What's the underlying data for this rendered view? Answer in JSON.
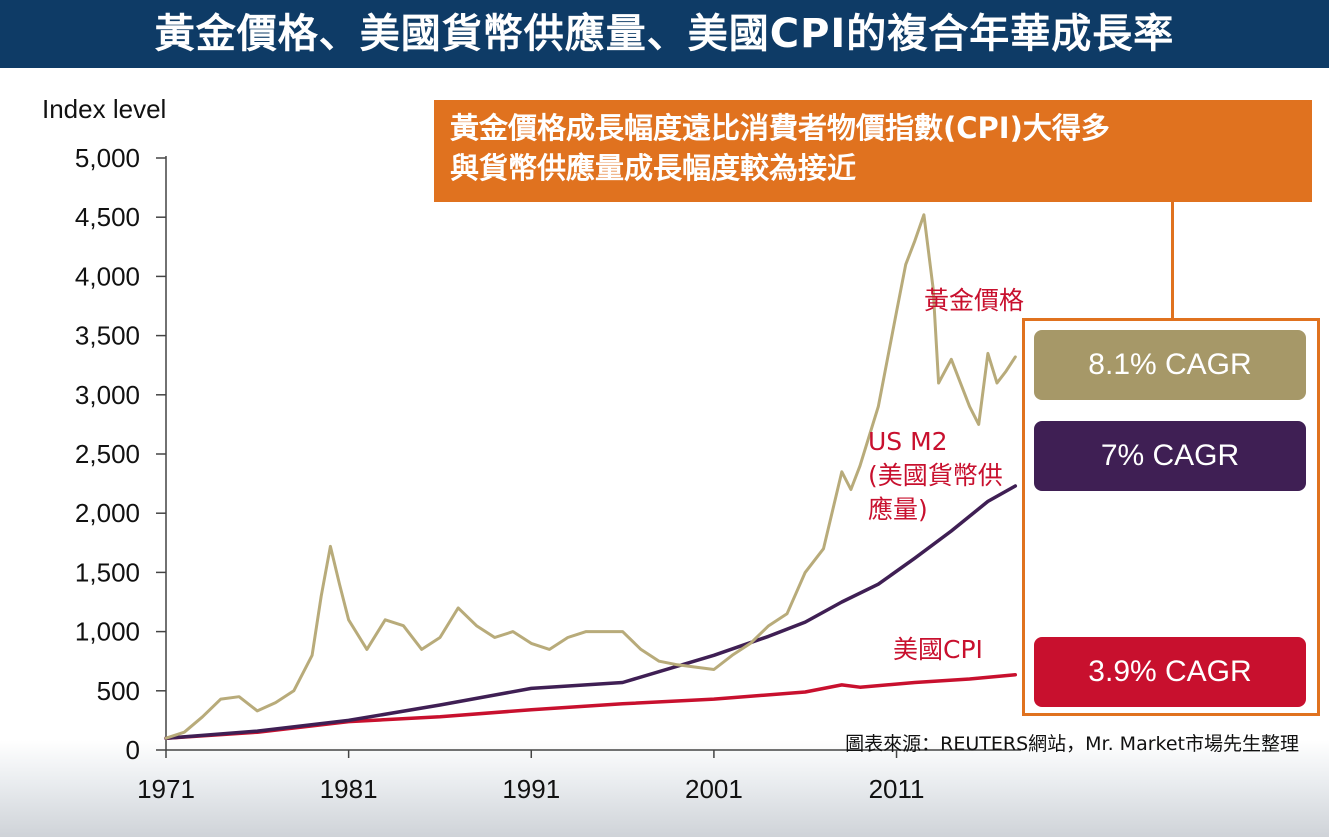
{
  "title": "黃金價格、美國貨幣供應量、美國CPI的複合年華成長率",
  "callout": {
    "line1": "黃金價格成長幅度遠比消費者物價指數(CPI)大得多",
    "line2": "與貨幣供應量成長幅度較為接近"
  },
  "cagr": {
    "gold": "8.1% CAGR",
    "m2": "7% CAGR",
    "cpi": "3.9% CAGR"
  },
  "labels": {
    "gold": "黃金價格",
    "m2_line1": "US M2",
    "m2_line2": "(美國貨幣供",
    "m2_line3": "應量)",
    "cpi": "美國CPI"
  },
  "source": "圖表來源：REUTERS網站，Mr. Market市場先生整理",
  "colors": {
    "gold": "#b8ab7a",
    "m2": "#3f1f54",
    "cpi": "#c8102e",
    "title_bg": "#0e3b66",
    "callout_bg": "#e0721f"
  },
  "chart_data": {
    "type": "line",
    "ylabel": "Index level",
    "ylim": [
      0,
      5000
    ],
    "yticks": [
      "5,000",
      "4,500",
      "4,000",
      "3,500",
      "3,000",
      "2,500",
      "2,000",
      "1,500",
      "1,000",
      "500",
      "0"
    ],
    "yticks_values": [
      5000,
      4500,
      4000,
      3500,
      3000,
      2500,
      2000,
      1500,
      1000,
      500,
      0
    ],
    "xticks": [
      "1971",
      "1981",
      "1991",
      "2001",
      "2011"
    ],
    "xticks_values": [
      1971,
      1981,
      1991,
      2001,
      2011
    ],
    "xlim": [
      1971,
      2017.5
    ],
    "series": [
      {
        "name": "黃金價格",
        "color": "#b8ab7a",
        "points": [
          [
            1971,
            100
          ],
          [
            1972,
            150
          ],
          [
            1973,
            280
          ],
          [
            1974,
            430
          ],
          [
            1975,
            450
          ],
          [
            1976,
            330
          ],
          [
            1977,
            400
          ],
          [
            1978,
            500
          ],
          [
            1979,
            800
          ],
          [
            1979.5,
            1300
          ],
          [
            1980,
            1720
          ],
          [
            1980.5,
            1400
          ],
          [
            1981,
            1100
          ],
          [
            1982,
            850
          ],
          [
            1983,
            1100
          ],
          [
            1984,
            1050
          ],
          [
            1985,
            850
          ],
          [
            1986,
            950
          ],
          [
            1987,
            1200
          ],
          [
            1988,
            1050
          ],
          [
            1989,
            950
          ],
          [
            1990,
            1000
          ],
          [
            1991,
            900
          ],
          [
            1992,
            850
          ],
          [
            1993,
            950
          ],
          [
            1994,
            1000
          ],
          [
            1995,
            1000
          ],
          [
            1996,
            1000
          ],
          [
            1997,
            850
          ],
          [
            1998,
            750
          ],
          [
            1999,
            720
          ],
          [
            2000,
            700
          ],
          [
            2001,
            680
          ],
          [
            2002,
            800
          ],
          [
            2003,
            900
          ],
          [
            2004,
            1050
          ],
          [
            2005,
            1150
          ],
          [
            2006,
            1500
          ],
          [
            2007,
            1700
          ],
          [
            2008,
            2350
          ],
          [
            2008.5,
            2200
          ],
          [
            2009,
            2400
          ],
          [
            2010,
            2900
          ],
          [
            2011,
            3700
          ],
          [
            2011.5,
            4100
          ],
          [
            2012,
            4300
          ],
          [
            2012.5,
            4520
          ],
          [
            2013,
            3900
          ],
          [
            2013.3,
            3100
          ],
          [
            2014,
            3300
          ],
          [
            2015,
            2900
          ],
          [
            2015.5,
            2750
          ],
          [
            2016,
            3350
          ],
          [
            2016.5,
            3100
          ],
          [
            2017,
            3200
          ],
          [
            2017.5,
            3320
          ]
        ]
      },
      {
        "name": "US M2",
        "color": "#3f1f54",
        "points": [
          [
            1971,
            100
          ],
          [
            1976,
            160
          ],
          [
            1981,
            250
          ],
          [
            1986,
            380
          ],
          [
            1991,
            520
          ],
          [
            1996,
            570
          ],
          [
            2001,
            800
          ],
          [
            2004,
            960
          ],
          [
            2006,
            1080
          ],
          [
            2008,
            1250
          ],
          [
            2010,
            1400
          ],
          [
            2012,
            1620
          ],
          [
            2014,
            1850
          ],
          [
            2016,
            2100
          ],
          [
            2017.5,
            2230
          ]
        ]
      },
      {
        "name": "美國CPI",
        "color": "#c8102e",
        "points": [
          [
            1971,
            100
          ],
          [
            1976,
            150
          ],
          [
            1981,
            240
          ],
          [
            1986,
            280
          ],
          [
            1991,
            340
          ],
          [
            1996,
            390
          ],
          [
            2001,
            430
          ],
          [
            2006,
            490
          ],
          [
            2008,
            550
          ],
          [
            2009,
            530
          ],
          [
            2012,
            570
          ],
          [
            2015,
            600
          ],
          [
            2017.5,
            635
          ]
        ]
      }
    ]
  }
}
